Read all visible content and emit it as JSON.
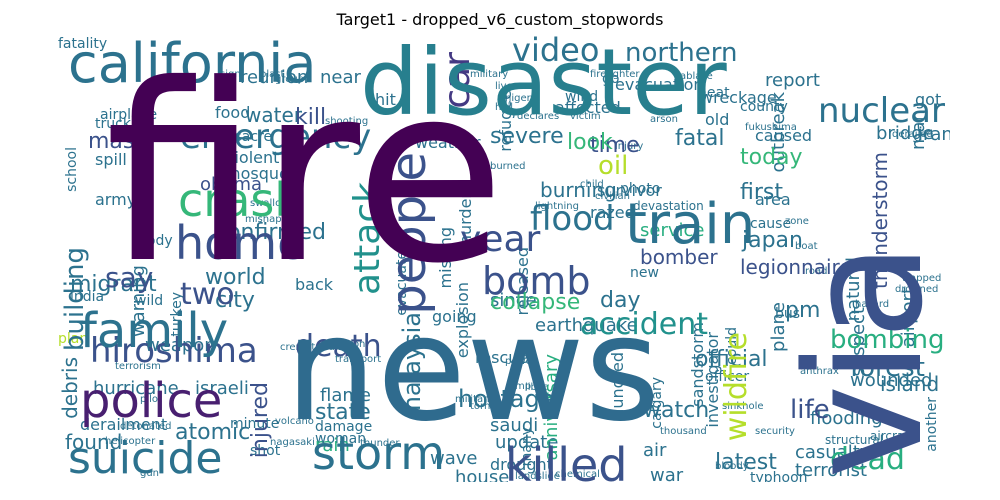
{
  "title": "Target1 - dropped_v6_custom_stopwords",
  "palette": {
    "dark_purple": "#440154",
    "indigo": "#46327e",
    "slate_blue": "#365c8d",
    "steel_blue": "#277f8e",
    "teal": "#1fa187",
    "green": "#4ac16d",
    "lime": "#a0da39",
    "yellow": "#fde725"
  },
  "words": [
    {
      "text": "fire",
      "color": "#440154",
      "rank": 1
    },
    {
      "text": "news",
      "color": "#2f6b8e",
      "rank": 2
    },
    {
      "text": "disaster",
      "color": "#277f8e",
      "rank": 3
    },
    {
      "text": "via",
      "color": "#3b528b",
      "rank": 4
    },
    {
      "text": "california",
      "color": "#2c728e",
      "rank": 5
    },
    {
      "text": "people",
      "color": "#3b528b",
      "rank": 6
    },
    {
      "text": "suicide",
      "color": "#2c728e",
      "rank": 7
    },
    {
      "text": "storm",
      "color": "#2c728e",
      "rank": 8
    },
    {
      "text": "police",
      "color": "#481f70",
      "rank": 9
    },
    {
      "text": "family",
      "color": "#2c728e",
      "rank": 10
    },
    {
      "text": "killed",
      "color": "#3b528b",
      "rank": 11
    },
    {
      "text": "train",
      "color": "#2c728e",
      "rank": 12
    },
    {
      "text": "home",
      "color": "#3b528b",
      "rank": 13
    },
    {
      "text": "crash",
      "color": "#35b779",
      "rank": 14
    },
    {
      "text": "emergency",
      "color": "#2c728e",
      "rank": 15
    },
    {
      "text": "hiroshima",
      "color": "#3b528b",
      "rank": 16
    },
    {
      "text": "wildfire",
      "color": "#b5de2b",
      "rank": 17
    },
    {
      "text": "building",
      "color": "#2c728e",
      "rank": 18
    },
    {
      "text": "bomb",
      "color": "#3b528b",
      "rank": 19
    },
    {
      "text": "attack",
      "color": "#21918c",
      "rank": 20
    },
    {
      "text": "video",
      "color": "#2c728e",
      "rank": 21
    },
    {
      "text": "nuclear",
      "color": "#2c728e",
      "rank": 22
    },
    {
      "text": "flood",
      "color": "#2c728e",
      "rank": 23
    },
    {
      "text": "year",
      "color": "#3b528b",
      "rank": 24
    },
    {
      "text": "car",
      "color": "#443983",
      "rank": 25
    },
    {
      "text": "northern",
      "color": "#2c728e",
      "rank": 26
    },
    {
      "text": "accident",
      "color": "#21918c",
      "rank": 27
    },
    {
      "text": "bombing",
      "color": "#28ae80",
      "rank": 28
    },
    {
      "text": "death",
      "color": "#3b528b",
      "rank": 29
    },
    {
      "text": "dead",
      "color": "#28ae80",
      "rank": 30
    },
    {
      "text": "forest",
      "color": "#2c728e",
      "rank": 31
    },
    {
      "text": "life",
      "color": "#3b528b",
      "rank": 32
    },
    {
      "text": "two",
      "color": "#3b528b",
      "rank": 33
    },
    {
      "text": "say",
      "color": "#3b528b",
      "rank": 34
    },
    {
      "text": "kill",
      "color": "#3b528b",
      "rank": 35
    },
    {
      "text": "water",
      "color": "#2c728e",
      "rank": 36
    },
    {
      "text": "mass",
      "color": "#3b528b",
      "rank": 37
    },
    {
      "text": "oil",
      "color": "#b5de2b",
      "rank": 38
    },
    {
      "text": "look",
      "color": "#35b779",
      "rank": 39
    },
    {
      "text": "fatal",
      "color": "#2c728e",
      "rank": 40
    },
    {
      "text": "today",
      "color": "#35b779",
      "rank": 41
    },
    {
      "text": "japan",
      "color": "#2c728e",
      "rank": 42
    },
    {
      "text": "collapse",
      "color": "#35b779",
      "rank": 43
    },
    {
      "text": "earthquake",
      "color": "#2c728e",
      "rank": 44
    },
    {
      "text": "hostage",
      "color": "#2c728e",
      "rank": 45
    },
    {
      "text": "malaysia",
      "color": "#2c728e",
      "rank": 46
    },
    {
      "text": "injured",
      "color": "#3b528b",
      "rank": 47
    },
    {
      "text": "watch",
      "color": "#2c728e",
      "rank": 48
    },
    {
      "text": "atomic",
      "color": "#2c728e",
      "rank": 49
    },
    {
      "text": "found",
      "color": "#2c728e",
      "rank": 50
    },
    {
      "text": "debris",
      "color": "#2c728e",
      "rank": 51
    },
    {
      "text": "state",
      "color": "#2c728e",
      "rank": 52
    },
    {
      "text": "rain",
      "color": "#28ae80",
      "rank": 53
    },
    {
      "text": "city",
      "color": "#2c728e",
      "rank": 54
    },
    {
      "text": "world",
      "color": "#2c728e",
      "rank": 55
    },
    {
      "text": "migrant",
      "color": "#2c728e",
      "rank": 56
    },
    {
      "text": "confirmed",
      "color": "#2c728e",
      "rank": 57
    },
    {
      "text": "obama",
      "color": "#3b528b",
      "rank": 58
    },
    {
      "text": "severe",
      "color": "#2c728e",
      "rank": 59
    },
    {
      "text": "time",
      "color": "#3b528b",
      "rank": 60
    },
    {
      "text": "burning",
      "color": "#2c728e",
      "rank": 61
    },
    {
      "text": "thunderstorm",
      "color": "#3b528b",
      "rank": 62
    },
    {
      "text": "legionnaire",
      "color": "#3b528b",
      "rank": 63
    },
    {
      "text": "bomber",
      "color": "#3b528b",
      "rank": 64
    },
    {
      "text": "first",
      "color": "#2c728e",
      "rank": 65
    },
    {
      "text": "pm",
      "color": "#2c728e",
      "rank": 66
    },
    {
      "text": "day",
      "color": "#2c728e",
      "rank": 67
    },
    {
      "text": "since",
      "color": "#2c728e",
      "rank": 68
    },
    {
      "text": "anniversary",
      "color": "#28ae80",
      "rank": 69
    },
    {
      "text": "official",
      "color": "#2c728e",
      "rank": 70
    },
    {
      "text": "latest",
      "color": "#2c728e",
      "rank": 71
    },
    {
      "text": "casualty",
      "color": "#2c728e",
      "rank": 72
    },
    {
      "text": "terrorist",
      "color": "#2c728e",
      "rank": 73
    },
    {
      "text": "war",
      "color": "#2c728e",
      "rank": 74
    },
    {
      "text": "house",
      "color": "#2c728e",
      "rank": 75
    },
    {
      "text": "wave",
      "color": "#2c728e",
      "rank": 76
    },
    {
      "text": "flooding",
      "color": "#2c728e",
      "rank": 77
    },
    {
      "text": "island",
      "color": "#2c728e",
      "rank": 78
    },
    {
      "text": "plane",
      "color": "#2c728e",
      "rank": 79
    },
    {
      "text": "suspect",
      "color": "#2c728e",
      "rank": 80
    },
    {
      "text": "natural",
      "color": "#2c728e",
      "rank": 81
    },
    {
      "text": "airport",
      "color": "#2c728e",
      "rank": 82
    },
    {
      "text": "outbreak",
      "color": "#2c728e",
      "rank": 83
    },
    {
      "text": "report",
      "color": "#2c728e",
      "rank": 84
    },
    {
      "text": "reunion",
      "color": "#2c728e",
      "rank": 85
    },
    {
      "text": "near",
      "color": "#2c728e",
      "rank": 86
    },
    {
      "text": "man",
      "color": "#2c728e",
      "rank": 87
    },
    {
      "text": "iran",
      "color": "#2c728e",
      "rank": 88
    },
    {
      "text": "bridge",
      "color": "#2c728e",
      "rank": 89
    },
    {
      "text": "weapon",
      "color": "#2c728e",
      "rank": 90
    },
    {
      "text": "flame",
      "color": "#2c728e",
      "rank": 91
    },
    {
      "text": "hurricane",
      "color": "#2c728e",
      "rank": 92
    },
    {
      "text": "israeli",
      "color": "#2c728e",
      "rank": 93
    },
    {
      "text": "saudi",
      "color": "#2c728e",
      "rank": 94
    },
    {
      "text": "update",
      "color": "#2c728e",
      "rank": 95
    },
    {
      "text": "drought",
      "color": "#2c728e",
      "rank": 96
    },
    {
      "text": "air",
      "color": "#2c728e",
      "rank": 97
    },
    {
      "text": "rescuer",
      "color": "#2c728e",
      "rank": 98
    },
    {
      "text": "service",
      "color": "#28ae80",
      "rank": 99
    },
    {
      "text": "wounded",
      "color": "#2c728e",
      "rank": 100
    },
    {
      "text": "investigator",
      "color": "#2c728e",
      "rank": 101
    },
    {
      "text": "sandstorm",
      "color": "#2c728e",
      "rank": 102
    },
    {
      "text": "hundred",
      "color": "#2c728e",
      "rank": 103
    },
    {
      "text": "evacuation",
      "color": "#2c728e",
      "rank": 104
    },
    {
      "text": "affected",
      "color": "#2c728e",
      "rank": 105
    },
    {
      "text": "wreckage",
      "color": "#2c728e",
      "rank": 106
    },
    {
      "text": "fatality",
      "color": "#2c728e",
      "rank": 107
    },
    {
      "text": "spill",
      "color": "#2c728e",
      "rank": 108
    },
    {
      "text": "army",
      "color": "#2c728e",
      "rank": 109
    },
    {
      "text": "warning",
      "color": "#2c728e",
      "rank": 110
    },
    {
      "text": "plan",
      "color": "#b5de2b",
      "rank": 111
    },
    {
      "text": "derailment",
      "color": "#2c728e",
      "rank": 112
    },
    {
      "text": "back",
      "color": "#2c728e",
      "rank": 113
    },
    {
      "text": "going",
      "color": "#2c728e",
      "rank": 114
    },
    {
      "text": "violent",
      "color": "#2c728e",
      "rank": 115
    },
    {
      "text": "mosque",
      "color": "#2c728e",
      "rank": 116
    },
    {
      "text": "food",
      "color": "#2c728e",
      "rank": 117
    },
    {
      "text": "massacre",
      "color": "#2c728e",
      "rank": 118
    },
    {
      "text": "weather",
      "color": "#2c728e",
      "rank": 119
    },
    {
      "text": "survivor",
      "color": "#2c728e",
      "rank": 120
    },
    {
      "text": "explosion",
      "color": "#2c728e",
      "rank": 121
    },
    {
      "text": "evacuated",
      "color": "#2c728e",
      "rank": 122
    },
    {
      "text": "razed",
      "color": "#2c728e",
      "rank": 123
    },
    {
      "text": "missing",
      "color": "#2c728e",
      "rank": 124
    },
    {
      "text": "refugee",
      "color": "#2c728e",
      "rank": 125
    },
    {
      "text": "murder",
      "color": "#2c728e",
      "rank": 126
    },
    {
      "text": "released",
      "color": "#2c728e",
      "rank": 127
    },
    {
      "text": "new",
      "color": "#2c728e",
      "rank": 128
    },
    {
      "text": "officer",
      "color": "#2c728e",
      "rank": 129
    },
    {
      "text": "bus",
      "color": "#2c728e",
      "rank": 130
    },
    {
      "text": "could",
      "color": "#2c728e",
      "rank": 131
    },
    {
      "text": "area",
      "color": "#2c728e",
      "rank": 132
    },
    {
      "text": "cause",
      "color": "#2c728e",
      "rank": 133
    },
    {
      "text": "caused",
      "color": "#2c728e",
      "rank": 134
    },
    {
      "text": "old",
      "color": "#2c728e",
      "rank": 135
    },
    {
      "text": "heat",
      "color": "#2c728e",
      "rank": 136
    },
    {
      "text": "wind",
      "color": "#2c728e",
      "rank": 137
    },
    {
      "text": "hit",
      "color": "#2c728e",
      "rank": 138
    },
    {
      "text": "got",
      "color": "#2c728e",
      "rank": 139
    },
    {
      "text": "county",
      "color": "#2c728e",
      "rank": 140
    },
    {
      "text": "woman",
      "color": "#2c728e",
      "rank": 141
    },
    {
      "text": "damage",
      "color": "#2c728e",
      "rank": 142
    },
    {
      "text": "shot",
      "color": "#2c728e",
      "rank": 143
    },
    {
      "text": "typhoon",
      "color": "#2c728e",
      "rank": 144
    },
    {
      "text": "many",
      "color": "#2c728e",
      "rank": 145
    },
    {
      "text": "india",
      "color": "#2c728e",
      "rank": 146
    },
    {
      "text": "wild",
      "color": "#2c728e",
      "rank": 147
    },
    {
      "text": "truck",
      "color": "#2c728e",
      "rank": 148
    },
    {
      "text": "school",
      "color": "#2c728e",
      "rank": 149
    },
    {
      "text": "airplane",
      "color": "#2c728e",
      "rank": 150
    },
    {
      "text": "another",
      "color": "#2c728e",
      "rank": 151
    },
    {
      "text": "body",
      "color": "#2c728e",
      "rank": 152
    },
    {
      "text": "minute",
      "color": "#2c728e",
      "rank": 153
    },
    {
      "text": "turkey",
      "color": "#2c728e",
      "rank": 154
    },
    {
      "text": "calgary",
      "color": "#2c728e",
      "rank": 155
    },
    {
      "text": "go",
      "color": "#2c728e",
      "rank": 156
    },
    {
      "text": "photo",
      "color": "#2c728e",
      "rank": 157
    },
    {
      "text": "devastation",
      "color": "#2c728e",
      "rank": 158
    },
    {
      "text": "structural",
      "color": "#2c728e",
      "rank": 159
    },
    {
      "text": "aircraft",
      "color": "#2c728e",
      "rank": 160
    },
    {
      "text": "derailed",
      "color": "#2c728e",
      "rank": 161
    },
    {
      "text": "sinkhole",
      "color": "#2c728e",
      "rank": 162
    },
    {
      "text": "volcano",
      "color": "#2c728e",
      "rank": 163
    },
    {
      "text": "detonated",
      "color": "#2c728e",
      "rank": 164
    },
    {
      "text": "terrorism",
      "color": "#2c728e",
      "rank": 165
    },
    {
      "text": "collision",
      "color": "#2c728e",
      "rank": 166
    },
    {
      "text": "tornado",
      "color": "#2c728e",
      "rank": 167
    },
    {
      "text": "chemical",
      "color": "#2c728e",
      "rank": 168
    },
    {
      "text": "fukushima",
      "color": "#2c728e",
      "rank": 169
    },
    {
      "text": "swallowed",
      "color": "#2c728e",
      "rank": 170
    },
    {
      "text": "lightning",
      "color": "#2c728e",
      "rank": 171
    },
    {
      "text": "shooting",
      "color": "#2c728e",
      "rank": 172
    },
    {
      "text": "mishap",
      "color": "#2c728e",
      "rank": 173
    },
    {
      "text": "helicopter",
      "color": "#2c728e",
      "rank": 174
    },
    {
      "text": "pilot",
      "color": "#2c728e",
      "rank": 175
    },
    {
      "text": "landslide",
      "color": "#2c728e",
      "rank": 176
    },
    {
      "text": "thunder",
      "color": "#2c728e",
      "rank": 177
    },
    {
      "text": "militant",
      "color": "#2c728e",
      "rank": 178
    },
    {
      "text": "libya",
      "color": "#2c728e",
      "rank": 179
    },
    {
      "text": "nagasaki",
      "color": "#2c728e",
      "rank": 180
    },
    {
      "text": "crematorium",
      "color": "#2c728e",
      "rank": 181
    },
    {
      "text": "transport",
      "color": "#2c728e",
      "rank": 182
    },
    {
      "text": "child",
      "color": "#2c728e",
      "rank": 183
    },
    {
      "text": "civilian",
      "color": "#2c728e",
      "rank": 184
    },
    {
      "text": "boat",
      "color": "#2c728e",
      "rank": 185
    },
    {
      "text": "road",
      "color": "#2c728e",
      "rank": 186
    },
    {
      "text": "hail",
      "color": "#2c728e",
      "rank": 187
    },
    {
      "text": "declares",
      "color": "#2c728e",
      "rank": 188
    },
    {
      "text": "live",
      "color": "#2c728e",
      "rank": 189
    },
    {
      "text": "military",
      "color": "#2c728e",
      "rank": 190
    },
    {
      "text": "trapped",
      "color": "#2c728e",
      "rank": 191
    },
    {
      "text": "drowned",
      "color": "#2c728e",
      "rank": 192
    },
    {
      "text": "anthrax",
      "color": "#2c728e",
      "rank": 193
    },
    {
      "text": "firefighter",
      "color": "#2c728e",
      "rank": 194
    },
    {
      "text": "blast",
      "color": "#2c728e",
      "rank": 195
    },
    {
      "text": "sign",
      "color": "#2c728e",
      "rank": 196
    },
    {
      "text": "group",
      "color": "#2c728e",
      "rank": 197
    },
    {
      "text": "arson",
      "color": "#2c728e",
      "rank": 198
    },
    {
      "text": "ablaze",
      "color": "#2c728e",
      "rank": 199
    },
    {
      "text": "burned",
      "color": "#2c728e",
      "rank": 200
    },
    {
      "text": "victim",
      "color": "#2c728e",
      "rank": 201
    },
    {
      "text": "injury",
      "color": "#2c728e",
      "rank": 202
    },
    {
      "text": "thousand",
      "color": "#2c728e",
      "rank": 203
    },
    {
      "text": "security",
      "color": "#2c728e",
      "rank": 204
    },
    {
      "text": "power",
      "color": "#2c728e",
      "rank": 205
    },
    {
      "text": "bloody",
      "color": "#2c728e",
      "rank": 206
    },
    {
      "text": "mp",
      "color": "#2c728e",
      "rank": 207
    },
    {
      "text": "gun",
      "color": "#2c728e",
      "rank": 208
    },
    {
      "text": "nigeria",
      "color": "#2c728e",
      "rank": 209
    },
    {
      "text": "zone",
      "color": "#2c728e",
      "rank": 210
    },
    {
      "text": "hazard",
      "color": "#2c728e",
      "rank": 211
    }
  ]
}
